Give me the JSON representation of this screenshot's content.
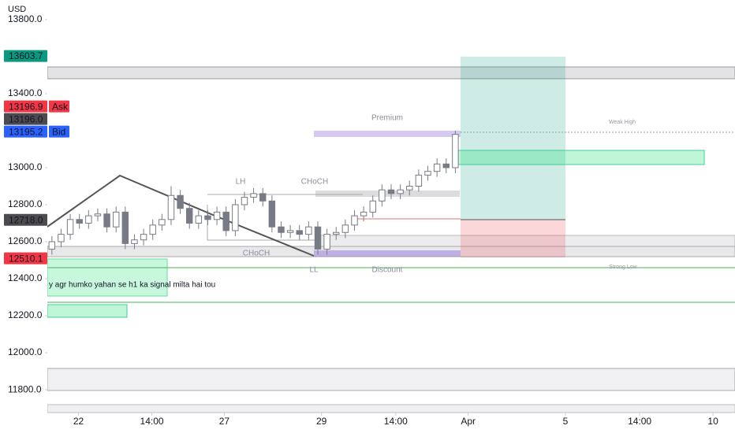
{
  "chart_data": {
    "type": "candlestick",
    "currency": "USD",
    "open": [
      12560,
      12600,
      12640,
      12720,
      12700,
      12740,
      12750,
      12680,
      12760,
      12590,
      12610,
      12640,
      12690,
      12720,
      12850,
      12780,
      12700,
      12740,
      12720,
      12760,
      12660,
      12800,
      12840,
      12860,
      12820,
      12680,
      12650,
      12660,
      12640,
      12680,
      12560,
      12640,
      12650,
      12690,
      12740,
      12760,
      12820,
      12880,
      12860,
      12880,
      12900,
      12960,
      12980,
      13020,
      13000
    ],
    "high": [
      12630,
      12670,
      12750,
      12750,
      12770,
      12780,
      12780,
      12790,
      12790,
      12640,
      12670,
      12720,
      12750,
      12900,
      12880,
      12810,
      12770,
      12770,
      12790,
      12790,
      12830,
      12870,
      12890,
      12890,
      12850,
      12710,
      12690,
      12690,
      12710,
      12710,
      12670,
      12680,
      12720,
      12770,
      12790,
      12850,
      12910,
      12910,
      12910,
      12930,
      12990,
      13010,
      13050,
      13050,
      13200
    ],
    "low": [
      12530,
      12570,
      12610,
      12670,
      12670,
      12710,
      12650,
      12650,
      12560,
      12560,
      12580,
      12610,
      12660,
      12690,
      12750,
      12670,
      12670,
      12690,
      12690,
      12630,
      12630,
      12770,
      12810,
      12790,
      12650,
      12620,
      12620,
      12610,
      12610,
      12530,
      12530,
      12610,
      12620,
      12660,
      12710,
      12730,
      12790,
      12830,
      12830,
      12850,
      12870,
      12930,
      12950,
      12970,
      12970
    ],
    "close": [
      12600,
      12640,
      12720,
      12700,
      12740,
      12750,
      12680,
      12760,
      12590,
      12610,
      12640,
      12690,
      12720,
      12850,
      12780,
      12700,
      12740,
      12720,
      12760,
      12660,
      12800,
      12840,
      12860,
      12820,
      12680,
      12650,
      12660,
      12640,
      12680,
      12560,
      12640,
      12650,
      12690,
      12740,
      12760,
      12820,
      12880,
      12860,
      12880,
      12900,
      12960,
      12980,
      13020,
      13000,
      13180
    ],
    "up_color": "#ffffff",
    "down_color": "#787b86",
    "ylim": [
      11694,
      13906
    ],
    "yticks": [
      {
        "value": 13800,
        "label": "13800.0"
      },
      {
        "value": 13400,
        "label": "13400.0"
      },
      {
        "value": 13000,
        "label": "13000.0"
      },
      {
        "value": 12800,
        "label": "12800.0"
      },
      {
        "value": 12600,
        "label": "12600.0"
      },
      {
        "value": 12400,
        "label": "12400.0"
      },
      {
        "value": 12200,
        "label": "12200.0"
      },
      {
        "value": 12000,
        "label": "12000.0"
      },
      {
        "value": 11800,
        "label": "11800.0"
      }
    ],
    "xlim": [
      -0.5,
      74.5
    ],
    "xticks": [
      {
        "value": 2.9,
        "label": "22"
      },
      {
        "value": 10.9,
        "label": "14:00"
      },
      {
        "value": 18.8,
        "label": "27"
      },
      {
        "value": 29.4,
        "label": "29"
      },
      {
        "value": 37.5,
        "label": "14:00"
      },
      {
        "value": 45.4,
        "label": "Apr"
      },
      {
        "value": 56,
        "label": "5"
      },
      {
        "value": 64.1,
        "label": "14:00"
      },
      {
        "value": 72.1,
        "label": "10"
      }
    ],
    "price_labels": [
      {
        "value": 13603.7,
        "color": "#089981"
      },
      {
        "value": 13196.9,
        "tag": "Ask",
        "color": "#f23645"
      },
      {
        "value": 13196,
        "label": "13196.0",
        "color": "#4a4a4f"
      },
      {
        "value": 13195.2,
        "tag": "Bid",
        "color": "#2962ff"
      },
      {
        "value": 12718,
        "label": "12718.0",
        "color": "#4a4a4f"
      },
      {
        "value": 12510.1,
        "color": "#f23645"
      }
    ],
    "annotations": {
      "premium": "Premium",
      "weak_high": "Weak High",
      "lh": "LH",
      "choch_top": "CHoCH",
      "choch_bottom": "CHoCH",
      "ll": "LL",
      "discount": "Discount",
      "strong_low": "Strong Low",
      "note": "y agr humko yahan se h1 ka signal milta hai tou"
    }
  }
}
